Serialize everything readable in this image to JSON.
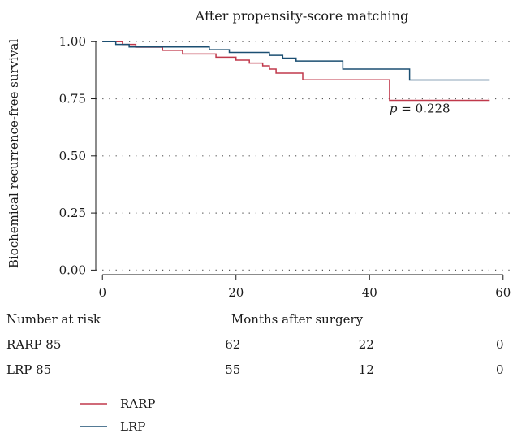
{
  "chart_data": {
    "type": "line",
    "title": "After propensity-score matching",
    "xlabel": "Months after surgery",
    "ylabel": "Biochemical recurrence-free survival",
    "xlim": [
      -1,
      61
    ],
    "ylim": [
      -0.02,
      1.04
    ],
    "x_ticks": [
      0,
      20,
      40,
      60
    ],
    "y_ticks": [
      0.0,
      0.25,
      0.5,
      0.75,
      1.0
    ],
    "y_tick_labels": [
      "0.00",
      "0.25",
      "0.50",
      "0.75",
      "1.00"
    ],
    "grid": "horizontal-dotted",
    "annotation": {
      "p_symbol": "p",
      "text": " = 0.228",
      "x": 43,
      "y": 0.725
    },
    "series": [
      {
        "name": "RARP",
        "color": "#c0384b",
        "steps": [
          [
            0,
            1.0
          ],
          [
            3,
            0.988
          ],
          [
            5,
            0.976
          ],
          [
            9,
            0.962
          ],
          [
            12,
            0.946
          ],
          [
            17,
            0.932
          ],
          [
            20,
            0.919
          ],
          [
            22,
            0.906
          ],
          [
            24,
            0.894
          ],
          [
            25,
            0.88
          ],
          [
            26,
            0.862
          ],
          [
            30,
            0.833
          ],
          [
            43,
            0.743
          ],
          [
            58,
            0.743
          ]
        ]
      },
      {
        "name": "LRP",
        "color": "#1b4f72",
        "steps": [
          [
            0,
            1.0
          ],
          [
            2,
            0.988
          ],
          [
            4,
            0.977
          ],
          [
            12,
            0.977
          ],
          [
            16,
            0.965
          ],
          [
            19,
            0.953
          ],
          [
            25,
            0.94
          ],
          [
            27,
            0.928
          ],
          [
            29,
            0.915
          ],
          [
            36,
            0.88
          ],
          [
            46,
            0.832
          ],
          [
            58,
            0.832
          ]
        ]
      }
    ],
    "risk_table": {
      "header": "Number at risk",
      "time_points": [
        20,
        40,
        60
      ],
      "rows": [
        {
          "label": "RARP 85",
          "counts": [
            "62",
            "22",
            "0"
          ]
        },
        {
          "label": "LRP 85",
          "counts": [
            "55",
            "12",
            "0"
          ]
        }
      ]
    },
    "legend": [
      {
        "name": "RARP",
        "color": "#c0384b"
      },
      {
        "name": "LRP",
        "color": "#1b4f72"
      }
    ]
  }
}
